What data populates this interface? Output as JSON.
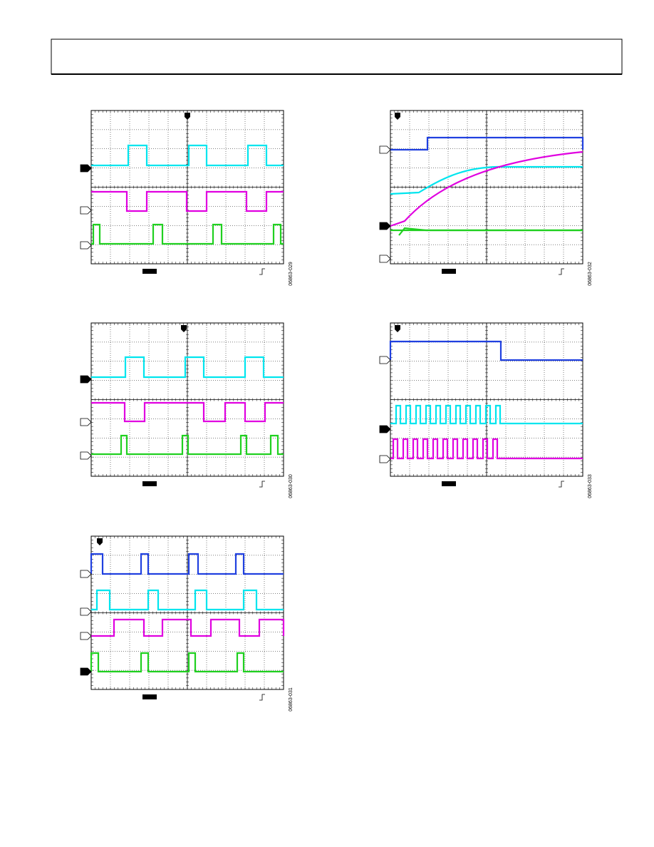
{
  "figures": [
    {
      "id": "06863-029"
    },
    {
      "id": "06863-030"
    },
    {
      "id": "06863-031"
    },
    {
      "id": "06863-032"
    },
    {
      "id": "06863-033"
    }
  ]
}
